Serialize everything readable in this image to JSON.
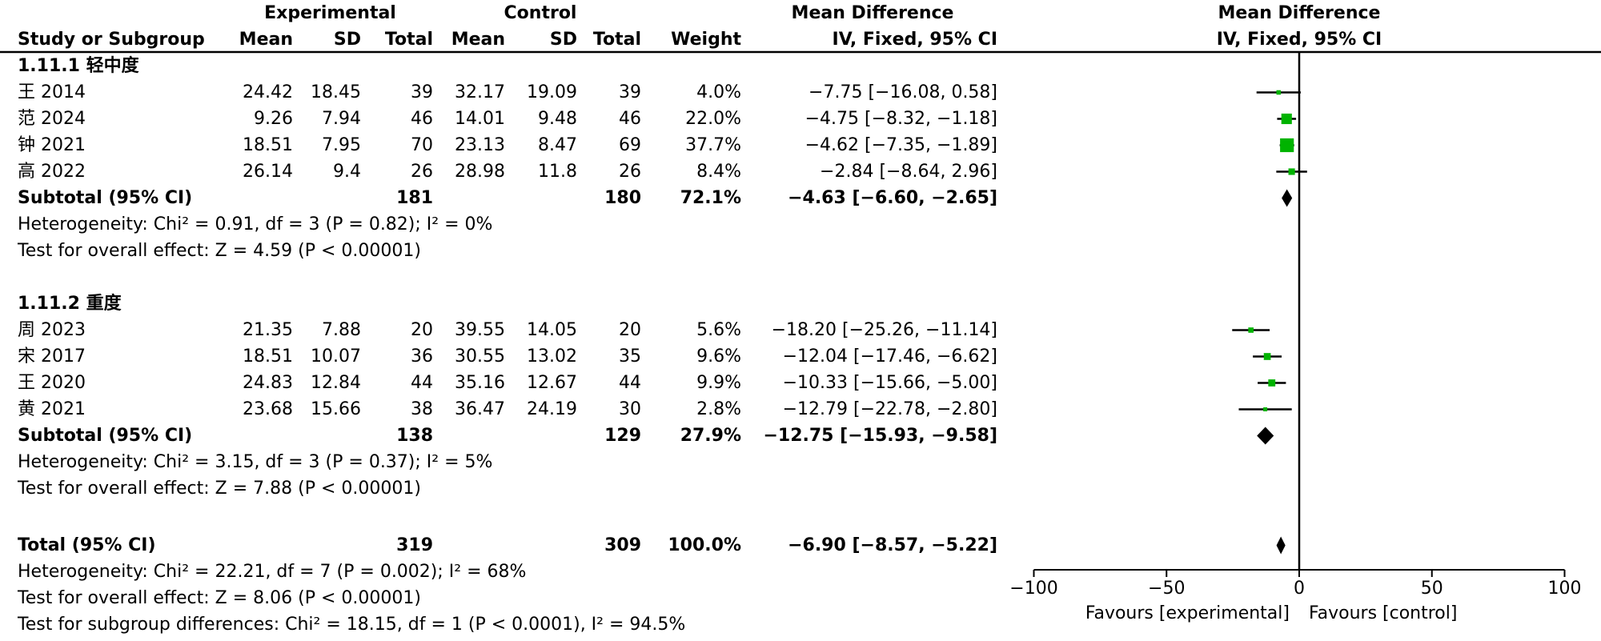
{
  "header": {
    "experimental": "Experimental",
    "control": "Control",
    "mean_difference": "Mean Difference",
    "iv_fixed": "IV, Fixed, 95% CI",
    "study_or_subgroup": "Study or Subgroup",
    "mean": "Mean",
    "sd": "SD",
    "total": "Total",
    "weight": "Weight"
  },
  "chart_data": {
    "type": "forest",
    "effect_label": "Mean Difference",
    "method_label": "IV, Fixed, 95% CI",
    "x_range": [
      -100,
      100
    ],
    "x_ticks": [
      {
        "v": -100,
        "label": "−100"
      },
      {
        "v": -50,
        "label": "−50"
      },
      {
        "v": 0,
        "label": "0"
      },
      {
        "v": 50,
        "label": "50"
      },
      {
        "v": 100,
        "label": "100"
      }
    ],
    "favours_left": "Favours [experimental]",
    "favours_right": "Favours [control]",
    "marker_color": "#00b300",
    "diamond_color": "#000000",
    "subgroups": [
      {
        "label": "1.11.1 轻中度",
        "studies": [
          {
            "study": "王 2014",
            "exp_mean": "24.42",
            "exp_sd": "18.45",
            "exp_total": "39",
            "ctl_mean": "32.17",
            "ctl_sd": "19.09",
            "ctl_total": "39",
            "weight": "4.0%",
            "weight_pct": 4.0,
            "md": -7.75,
            "ci_low": -16.08,
            "ci_high": 0.58,
            "ci_text": "−7.75 [−16.08, 0.58]"
          },
          {
            "study": "范 2024",
            "exp_mean": "9.26",
            "exp_sd": "7.94",
            "exp_total": "46",
            "ctl_mean": "14.01",
            "ctl_sd": "9.48",
            "ctl_total": "46",
            "weight": "22.0%",
            "weight_pct": 22.0,
            "md": -4.75,
            "ci_low": -8.32,
            "ci_high": -1.18,
            "ci_text": "−4.75 [−8.32, −1.18]"
          },
          {
            "study": "钟 2021",
            "exp_mean": "18.51",
            "exp_sd": "7.95",
            "exp_total": "70",
            "ctl_mean": "23.13",
            "ctl_sd": "8.47",
            "ctl_total": "69",
            "weight": "37.7%",
            "weight_pct": 37.7,
            "md": -4.62,
            "ci_low": -7.35,
            "ci_high": -1.89,
            "ci_text": "−4.62 [−7.35, −1.89]"
          },
          {
            "study": "高 2022",
            "exp_mean": "26.14",
            "exp_sd": "9.4",
            "exp_total": "26",
            "ctl_mean": "28.98",
            "ctl_sd": "11.8",
            "ctl_total": "26",
            "weight": "8.4%",
            "weight_pct": 8.4,
            "md": -2.84,
            "ci_low": -8.64,
            "ci_high": 2.96,
            "ci_text": "−2.84 [−8.64, 2.96]"
          }
        ],
        "subtotal": {
          "label": "Subtotal (95% CI)",
          "exp_total": "181",
          "ctl_total": "180",
          "weight": "72.1%",
          "md": -4.63,
          "ci_low": -6.6,
          "ci_high": -2.65,
          "ci_text": "−4.63 [−6.60, −2.65]"
        },
        "heterogeneity": "Heterogeneity: Chi² = 0.91, df = 3 (P = 0.82); I² = 0%",
        "overall": "Test for overall effect: Z = 4.59 (P < 0.00001)"
      },
      {
        "label": "1.11.2 重度",
        "studies": [
          {
            "study": "周 2023",
            "exp_mean": "21.35",
            "exp_sd": "7.88",
            "exp_total": "20",
            "ctl_mean": "39.55",
            "ctl_sd": "14.05",
            "ctl_total": "20",
            "weight": "5.6%",
            "weight_pct": 5.6,
            "md": -18.2,
            "ci_low": -25.26,
            "ci_high": -11.14,
            "ci_text": "−18.20 [−25.26, −11.14]"
          },
          {
            "study": "宋 2017",
            "exp_mean": "18.51",
            "exp_sd": "10.07",
            "exp_total": "36",
            "ctl_mean": "30.55",
            "ctl_sd": "13.02",
            "ctl_total": "35",
            "weight": "9.6%",
            "weight_pct": 9.6,
            "md": -12.04,
            "ci_low": -17.46,
            "ci_high": -6.62,
            "ci_text": "−12.04 [−17.46, −6.62]"
          },
          {
            "study": "王 2020",
            "exp_mean": "24.83",
            "exp_sd": "12.84",
            "exp_total": "44",
            "ctl_mean": "35.16",
            "ctl_sd": "12.67",
            "ctl_total": "44",
            "weight": "9.9%",
            "weight_pct": 9.9,
            "md": -10.33,
            "ci_low": -15.66,
            "ci_high": -5.0,
            "ci_text": "−10.33 [−15.66, −5.00]"
          },
          {
            "study": "黄 2021",
            "exp_mean": "23.68",
            "exp_sd": "15.66",
            "exp_total": "38",
            "ctl_mean": "36.47",
            "ctl_sd": "24.19",
            "ctl_total": "30",
            "weight": "2.8%",
            "weight_pct": 2.8,
            "md": -12.79,
            "ci_low": -22.78,
            "ci_high": -2.8,
            "ci_text": "−12.79 [−22.78, −2.80]"
          }
        ],
        "subtotal": {
          "label": "Subtotal (95% CI)",
          "exp_total": "138",
          "ctl_total": "129",
          "weight": "27.9%",
          "md": -12.75,
          "ci_low": -15.93,
          "ci_high": -9.58,
          "ci_text": "−12.75 [−15.93, −9.58]"
        },
        "heterogeneity": "Heterogeneity: Chi² = 3.15, df = 3 (P = 0.37); I² = 5%",
        "overall": "Test for overall effect: Z = 7.88 (P < 0.00001)"
      }
    ],
    "total": {
      "label": "Total (95% CI)",
      "exp_total": "319",
      "ctl_total": "309",
      "weight": "100.0%",
      "md": -6.9,
      "ci_low": -8.57,
      "ci_high": -5.22,
      "ci_text": "−6.90 [−8.57, −5.22]"
    },
    "total_heterogeneity": "Heterogeneity: Chi² = 22.21, df = 7 (P = 0.002); I² = 68%",
    "total_overall": "Test for overall effect: Z = 8.06 (P < 0.00001)",
    "subgroup_differences": "Test for subgroup differences: Chi² = 18.15, df = 1 (P < 0.0001), I² = 94.5%"
  }
}
